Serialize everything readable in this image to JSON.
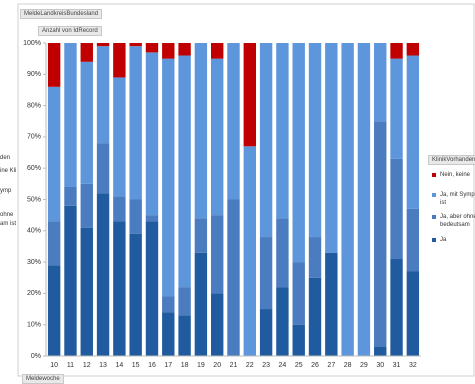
{
  "chart_data": {
    "type": "stacked_bar_100",
    "filter_button": "MeldeLandkreisBundesland",
    "value_button": "Anzahl von IdRecord",
    "axis_button": "Meldewoche",
    "legend_title": "KlinikVorhanden",
    "left_fragments": [
      "den",
      "ine Kli",
      "ymp",
      "ohne",
      "am ist"
    ],
    "categories": [
      "10",
      "11",
      "12",
      "13",
      "14",
      "15",
      "16",
      "17",
      "18",
      "19",
      "20",
      "21",
      "22",
      "23",
      "24",
      "25",
      "26",
      "27",
      "28",
      "29",
      "30",
      "31",
      "32"
    ],
    "series": [
      {
        "name": "Ja",
        "color": "#1f5b9e",
        "values": [
          29,
          48,
          41,
          52,
          43,
          39,
          43,
          14,
          13,
          33,
          20,
          0,
          0,
          15,
          22,
          10,
          25,
          33,
          0,
          0,
          3,
          31,
          27
        ]
      },
      {
        "name": "Ja, aber ohne bedeutsam",
        "color": "#4a7cbf",
        "values": [
          14,
          6,
          14,
          16,
          8,
          11,
          2,
          5,
          9,
          11,
          25,
          50,
          0,
          23,
          22,
          20,
          13,
          0,
          0,
          0,
          72,
          32,
          20
        ]
      },
      {
        "name": "Ja, mit Symp ist",
        "color": "#5e96dc",
        "values": [
          43,
          46,
          39,
          31,
          38,
          49,
          52,
          76,
          74,
          56,
          50,
          50,
          67,
          62,
          56,
          70,
          62,
          67,
          100,
          100,
          25,
          32,
          49
        ]
      },
      {
        "name": "Nein, keine",
        "color": "#c00000",
        "values": [
          14,
          0,
          6,
          1,
          11,
          1,
          3,
          5,
          4,
          0,
          5,
          0,
          33,
          0,
          0,
          0,
          0,
          0,
          0,
          0,
          0,
          5,
          4
        ]
      }
    ],
    "ylim": [
      0,
      100
    ],
    "yticks": [
      {
        "value": 0,
        "label": "0%"
      },
      {
        "value": 10,
        "label": "10%"
      },
      {
        "value": 20,
        "label": "20%"
      },
      {
        "value": 30,
        "label": "30%"
      },
      {
        "value": 40,
        "label": "40%"
      },
      {
        "value": 50,
        "label": "50%"
      },
      {
        "value": 60,
        "label": "60%"
      },
      {
        "value": 70,
        "label": "70%"
      },
      {
        "value": 80,
        "label": "80%"
      },
      {
        "value": 90,
        "label": "90%"
      },
      {
        "value": 100,
        "label": "100%"
      }
    ]
  }
}
